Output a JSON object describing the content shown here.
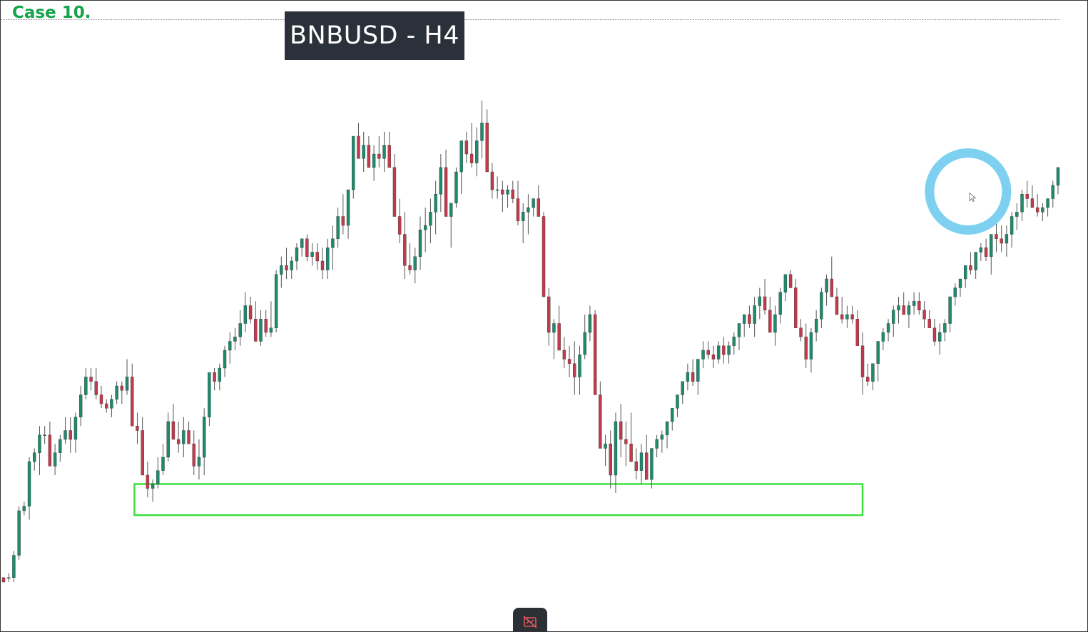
{
  "header": {
    "case_label": "Case 10.",
    "symbol_title": "BNBUSD - H4"
  },
  "colors": {
    "bull": "#1e8a6e",
    "bear": "#c43a4a",
    "wick": "#555555",
    "zone": "#3ee03e",
    "highlight_ring": "#7ed0f0",
    "case_label": "#16a34a",
    "title_bg": "#2b313b"
  },
  "chart_data": {
    "type": "candlestick",
    "symbol": "BNBUSD",
    "timeframe": "H4",
    "y_scale": "price (unlabeled, relative)",
    "zone": {
      "type": "support",
      "start_index": 26,
      "end_index": 167,
      "low": 17,
      "high": 24
    },
    "highlight_marker": {
      "shape": "ring",
      "index": 190,
      "level": 88
    },
    "ohlc": [
      [
        3,
        2,
        3,
        2
      ],
      [
        3,
        2,
        4,
        3
      ],
      [
        3,
        2,
        9,
        8
      ],
      [
        8,
        7,
        19,
        18
      ],
      [
        18,
        17,
        20,
        19
      ],
      [
        19,
        16,
        30,
        29
      ],
      [
        29,
        27,
        32,
        31
      ],
      [
        31,
        26,
        37,
        35
      ],
      [
        35,
        33,
        37,
        35
      ],
      [
        35,
        30,
        38,
        28
      ],
      [
        28,
        26,
        33,
        31
      ],
      [
        31,
        29,
        35,
        34
      ],
      [
        34,
        33,
        39,
        36
      ],
      [
        36,
        31,
        39,
        34
      ],
      [
        34,
        31,
        40,
        39
      ],
      [
        39,
        37,
        46,
        44
      ],
      [
        44,
        43,
        50,
        48
      ],
      [
        48,
        45,
        50,
        47
      ],
      [
        47,
        43,
        50,
        44
      ],
      [
        44,
        41,
        46,
        42
      ],
      [
        42,
        40,
        43,
        41
      ],
      [
        41,
        39,
        44,
        43
      ],
      [
        43,
        42,
        47,
        46
      ],
      [
        46,
        42,
        47,
        45
      ],
      [
        45,
        44,
        52,
        48
      ],
      [
        48,
        40,
        51,
        37
      ],
      [
        37,
        33,
        40,
        36
      ],
      [
        36,
        30,
        39,
        26
      ],
      [
        26,
        21,
        29,
        23
      ],
      [
        23,
        20,
        25,
        24
      ],
      [
        24,
        23,
        30,
        27
      ],
      [
        27,
        26,
        33,
        30
      ],
      [
        30,
        29,
        40,
        38
      ],
      [
        38,
        36,
        42,
        34
      ],
      [
        34,
        31,
        38,
        33
      ],
      [
        33,
        30,
        39,
        36
      ],
      [
        36,
        34,
        38,
        33
      ],
      [
        33,
        26,
        36,
        28
      ],
      [
        28,
        25,
        34,
        30
      ],
      [
        30,
        26,
        41,
        39
      ],
      [
        39,
        37,
        47,
        49
      ],
      [
        49,
        45,
        50,
        47
      ],
      [
        47,
        45,
        51,
        50
      ],
      [
        50,
        48,
        55,
        54
      ],
      [
        54,
        51,
        58,
        56
      ],
      [
        56,
        54,
        59,
        57
      ],
      [
        57,
        55,
        63,
        60
      ],
      [
        60,
        58,
        67,
        64
      ],
      [
        64,
        60,
        66,
        61
      ],
      [
        61,
        57,
        65,
        56
      ],
      [
        56,
        55,
        63,
        61
      ],
      [
        61,
        57,
        63,
        58
      ],
      [
        58,
        57,
        65,
        59
      ],
      [
        59,
        58,
        72,
        71
      ],
      [
        71,
        68,
        75,
        73
      ],
      [
        73,
        70,
        77,
        72
      ],
      [
        72,
        70,
        75,
        74
      ],
      [
        74,
        72,
        78,
        77
      ],
      [
        77,
        75,
        79,
        79
      ],
      [
        79,
        74,
        80,
        75
      ],
      [
        75,
        73,
        78,
        76
      ],
      [
        76,
        72,
        78,
        74
      ],
      [
        74,
        70,
        77,
        72
      ],
      [
        72,
        70,
        79,
        77
      ],
      [
        77,
        72,
        82,
        79
      ],
      [
        79,
        77,
        86,
        84
      ],
      [
        84,
        80,
        89,
        82
      ],
      [
        82,
        79,
        90,
        90
      ],
      [
        90,
        88,
        96,
        102
      ],
      [
        102,
        99,
        105,
        97
      ],
      [
        97,
        94,
        103,
        100
      ],
      [
        100,
        97,
        102,
        95
      ],
      [
        95,
        92,
        100,
        98
      ],
      [
        98,
        95,
        102,
        97
      ],
      [
        97,
        94,
        103,
        100
      ],
      [
        100,
        97,
        103,
        95
      ],
      [
        95,
        85,
        98,
        84
      ],
      [
        84,
        78,
        88,
        80
      ],
      [
        80,
        70,
        85,
        73
      ],
      [
        73,
        71,
        78,
        72
      ],
      [
        72,
        69,
        77,
        75
      ],
      [
        75,
        72,
        84,
        81
      ],
      [
        81,
        76,
        86,
        82
      ],
      [
        82,
        78,
        88,
        85
      ],
      [
        85,
        80,
        92,
        89
      ],
      [
        89,
        85,
        98,
        95
      ],
      [
        95,
        85,
        99,
        84
      ],
      [
        84,
        77,
        86,
        87
      ],
      [
        87,
        86,
        95,
        94
      ],
      [
        94,
        89,
        99,
        101
      ],
      [
        101,
        96,
        103,
        98
      ],
      [
        98,
        95,
        105,
        96
      ],
      [
        96,
        93,
        104,
        101
      ],
      [
        101,
        97,
        110,
        105
      ],
      [
        105,
        100,
        108,
        94
      ],
      [
        94,
        88,
        96,
        90
      ],
      [
        90,
        88,
        93,
        90
      ],
      [
        90,
        85,
        92,
        89
      ],
      [
        89,
        86,
        91,
        90
      ],
      [
        90,
        87,
        92,
        88
      ],
      [
        88,
        82,
        92,
        83
      ],
      [
        83,
        78,
        87,
        85
      ],
      [
        85,
        80,
        89,
        86
      ],
      [
        86,
        84,
        88,
        88
      ],
      [
        88,
        87,
        91,
        84
      ],
      [
        84,
        75,
        85,
        66
      ],
      [
        66,
        55,
        68,
        58
      ],
      [
        58,
        52,
        61,
        60
      ],
      [
        60,
        57,
        64,
        54
      ],
      [
        54,
        50,
        57,
        52
      ],
      [
        52,
        48,
        55,
        51
      ],
      [
        51,
        44,
        56,
        48
      ],
      [
        48,
        44,
        55,
        53
      ],
      [
        53,
        52,
        62,
        58
      ],
      [
        58,
        56,
        64,
        62
      ],
      [
        62,
        55,
        63,
        44
      ],
      [
        44,
        38,
        47,
        32
      ],
      [
        32,
        28,
        35,
        33
      ],
      [
        33,
        23,
        36,
        26
      ],
      [
        26,
        22,
        40,
        38
      ],
      [
        38,
        30,
        42,
        34
      ],
      [
        34,
        28,
        38,
        33
      ],
      [
        33,
        30,
        40,
        29
      ],
      [
        29,
        25,
        32,
        27
      ],
      [
        27,
        24,
        33,
        31
      ],
      [
        31,
        28,
        35,
        25
      ],
      [
        25,
        23,
        29,
        32
      ],
      [
        32,
        30,
        35,
        34
      ],
      [
        34,
        31,
        36,
        35
      ],
      [
        35,
        32,
        38,
        38
      ],
      [
        38,
        36,
        41,
        41
      ],
      [
        41,
        39,
        44,
        44
      ],
      [
        44,
        42,
        47,
        47
      ],
      [
        47,
        45,
        51,
        49
      ],
      [
        49,
        46,
        52,
        47
      ],
      [
        47,
        44,
        50,
        52
      ],
      [
        52,
        50,
        56,
        54
      ],
      [
        54,
        52,
        56,
        53
      ],
      [
        53,
        50,
        55,
        52
      ],
      [
        52,
        51,
        56,
        55
      ],
      [
        55,
        51,
        57,
        53
      ],
      [
        53,
        51,
        56,
        55
      ],
      [
        55,
        53,
        58,
        57
      ],
      [
        57,
        54,
        60,
        60
      ],
      [
        60,
        57,
        62,
        62
      ],
      [
        62,
        59,
        64,
        60
      ],
      [
        60,
        57,
        66,
        64
      ],
      [
        64,
        61,
        68,
        66
      ],
      [
        66,
        62,
        70,
        63
      ],
      [
        63,
        58,
        66,
        58
      ],
      [
        58,
        55,
        64,
        62
      ],
      [
        62,
        60,
        68,
        67
      ],
      [
        67,
        65,
        70,
        71
      ],
      [
        71,
        68,
        72,
        68
      ],
      [
        68,
        65,
        70,
        59
      ],
      [
        59,
        56,
        61,
        57
      ],
      [
        57,
        50,
        60,
        52
      ],
      [
        52,
        49,
        59,
        58
      ],
      [
        58,
        56,
        63,
        61
      ],
      [
        61,
        59,
        68,
        67
      ],
      [
        67,
        64,
        71,
        70
      ],
      [
        70,
        66,
        75,
        66
      ],
      [
        66,
        63,
        68,
        62
      ],
      [
        62,
        60,
        66,
        61
      ],
      [
        61,
        59,
        64,
        62
      ],
      [
        62,
        60,
        64,
        61
      ],
      [
        61,
        58,
        63,
        55
      ],
      [
        55,
        44,
        58,
        48
      ],
      [
        48,
        46,
        51,
        47
      ],
      [
        47,
        45,
        51,
        51
      ],
      [
        51,
        47,
        54,
        56
      ],
      [
        56,
        54,
        59,
        58
      ],
      [
        58,
        56,
        61,
        60
      ],
      [
        60,
        57,
        64,
        63
      ],
      [
        63,
        60,
        66,
        64
      ],
      [
        64,
        62,
        67,
        62
      ],
      [
        62,
        59,
        65,
        64
      ],
      [
        64,
        62,
        67,
        65
      ],
      [
        65,
        62,
        67,
        63
      ],
      [
        63,
        59,
        65,
        61
      ],
      [
        61,
        59,
        63,
        59
      ],
      [
        59,
        55,
        61,
        56
      ],
      [
        56,
        53,
        60,
        58
      ],
      [
        58,
        56,
        61,
        60
      ],
      [
        60,
        58,
        66,
        66
      ],
      [
        66,
        64,
        69,
        68
      ],
      [
        68,
        66,
        70,
        70
      ],
      [
        70,
        68,
        73,
        73
      ],
      [
        73,
        71,
        76,
        72
      ],
      [
        72,
        70,
        75,
        76
      ],
      [
        76,
        74,
        78,
        77
      ],
      [
        77,
        74,
        79,
        75
      ],
      [
        75,
        71,
        80,
        80
      ],
      [
        80,
        76,
        84,
        79
      ],
      [
        79,
        76,
        82,
        78
      ],
      [
        78,
        75,
        82,
        80
      ],
      [
        80,
        77,
        85,
        84
      ],
      [
        84,
        81,
        87,
        85
      ],
      [
        85,
        83,
        90,
        89
      ],
      [
        89,
        86,
        92,
        88
      ],
      [
        88,
        86,
        91,
        86
      ],
      [
        86,
        84,
        89,
        85
      ],
      [
        85,
        83,
        87,
        86
      ],
      [
        86,
        84,
        88,
        88
      ],
      [
        88,
        86,
        92,
        91
      ],
      [
        91,
        89,
        95,
        95
      ]
    ]
  }
}
